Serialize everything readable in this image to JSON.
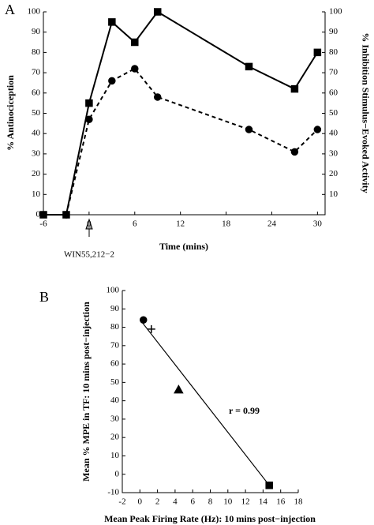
{
  "chart_data": [
    {
      "type": "line",
      "panel": "A",
      "xlabel": "Time (mins)",
      "ylabel": "% Antinociception",
      "y2label": "% Inhibition Stimulus−Evoked Activity",
      "annotation": "WIN55,212−2",
      "xlim": [
        -6,
        31
      ],
      "xticks": [
        -6,
        0,
        6,
        12,
        18,
        24,
        30
      ],
      "ylim": [
        0,
        100
      ],
      "yticks": [
        0,
        10,
        20,
        30,
        40,
        50,
        60,
        70,
        80,
        90,
        100
      ],
      "y2lim": [
        0,
        100
      ],
      "y2ticks": [
        10,
        20,
        30,
        40,
        50,
        60,
        70,
        80,
        90,
        100
      ],
      "series": [
        {
          "marker": "square",
          "dash": false,
          "color": "#000000",
          "x": [
            -6,
            -3,
            0,
            3,
            6,
            9,
            21,
            27,
            30
          ],
          "values": [
            0,
            0,
            55,
            95,
            85,
            100,
            73,
            62,
            80
          ]
        },
        {
          "marker": "circle",
          "dash": true,
          "axis": "y2",
          "color": "#000000",
          "x": [
            -3,
            0,
            3,
            6,
            9,
            21,
            27,
            30
          ],
          "values": [
            0,
            47,
            66,
            72,
            58,
            42,
            31,
            42
          ]
        }
      ]
    },
    {
      "type": "scatter",
      "panel": "B",
      "xlabel": "Mean Peak Firing Rate (Hz): 10 mins post−injection",
      "ylabel": "Mean % MPE in TF: 10 mins post−injection",
      "annotation": "r = 0.99",
      "xlim": [
        -2,
        18
      ],
      "xticks": [
        -2,
        0,
        2,
        4,
        6,
        8,
        10,
        12,
        14,
        16,
        18
      ],
      "ylim": [
        -10,
        100
      ],
      "yticks": [
        -10,
        0,
        10,
        20,
        30,
        40,
        50,
        60,
        70,
        80,
        90,
        100
      ],
      "x": [
        0.4,
        1.3,
        4.4,
        14.7
      ],
      "values": [
        84,
        79,
        46,
        -6
      ],
      "markers": [
        "circle",
        "plus",
        "triangle",
        "square"
      ],
      "color": "#000000",
      "fit_line": {
        "x": [
          0.2,
          14.7
        ],
        "values": [
          83,
          -6
        ]
      }
    }
  ]
}
